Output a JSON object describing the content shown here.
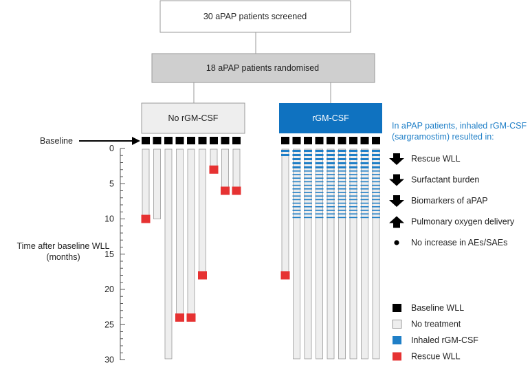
{
  "boxes": {
    "screened": "30 aPAP patients screened",
    "randomised": "18 aPAP patients randomised",
    "control": "No rGM-CSF",
    "treatment": "rGM-CSF"
  },
  "baseline_label": "Baseline",
  "axis": {
    "label_line1": "Time after baseline WLL",
    "label_line2": "(months)",
    "ticks": [
      "0",
      "5",
      "10",
      "15",
      "20",
      "25",
      "30"
    ],
    "range_months": [
      0,
      30
    ]
  },
  "control_arm": {
    "bars": [
      {
        "end_month": 10,
        "rescue_month": 10
      },
      {
        "end_month": 10,
        "rescue_month": null
      },
      {
        "end_month": 30,
        "rescue_month": null
      },
      {
        "end_month": 24,
        "rescue_month": 24
      },
      {
        "end_month": 24,
        "rescue_month": 24
      },
      {
        "end_month": 18,
        "rescue_month": 18
      },
      {
        "end_month": 3,
        "rescue_month": 3
      },
      {
        "end_month": 6,
        "rescue_month": 6
      },
      {
        "end_month": 6,
        "rescue_month": 6
      }
    ]
  },
  "treatment_arm": {
    "bars": [
      {
        "end_month": 18,
        "inhaled_until_month": 1,
        "rescue_month": 18
      },
      {
        "end_month": 30,
        "inhaled_until_month": 10,
        "rescue_month": null
      },
      {
        "end_month": 30,
        "inhaled_until_month": 10,
        "rescue_month": null
      },
      {
        "end_month": 30,
        "inhaled_until_month": 10,
        "rescue_month": null
      },
      {
        "end_month": 30,
        "inhaled_until_month": 10,
        "rescue_month": null
      },
      {
        "end_month": 30,
        "inhaled_until_month": 10,
        "rescue_month": null
      },
      {
        "end_month": 30,
        "inhaled_until_month": 10,
        "rescue_month": null
      },
      {
        "end_month": 30,
        "inhaled_until_month": 10,
        "rescue_month": null
      },
      {
        "end_month": 30,
        "inhaled_until_month": 10,
        "rescue_month": null
      }
    ]
  },
  "results": {
    "heading_line1": "In aPAP patients, inhaled rGM-CSF",
    "heading_line2": "(sargramostim) resulted in:",
    "items": [
      {
        "direction": "down",
        "text": "Rescue WLL"
      },
      {
        "direction": "down",
        "text": "Surfactant burden"
      },
      {
        "direction": "down",
        "text": "Biomarkers of aPAP"
      },
      {
        "direction": "up",
        "text": "Pulmonary oxygen delivery"
      },
      {
        "direction": "none",
        "text": "No increase in AEs/SAEs"
      }
    ]
  },
  "legend": [
    {
      "key": "baseline",
      "label": "Baseline WLL"
    },
    {
      "key": "none",
      "label": "No treatment"
    },
    {
      "key": "inhaled",
      "label": "Inhaled rGM-CSF"
    },
    {
      "key": "rescue",
      "label": "Rescue WLL"
    }
  ],
  "colors": {
    "baseline": "#000000",
    "no_treatment_fill": "#eeeeee",
    "no_treatment_stroke": "#999999",
    "inhaled": "#1f7fc7",
    "rescue": "#e63232",
    "treatment_box": "#0f72c0",
    "accent_text": "#1f7fc7"
  }
}
